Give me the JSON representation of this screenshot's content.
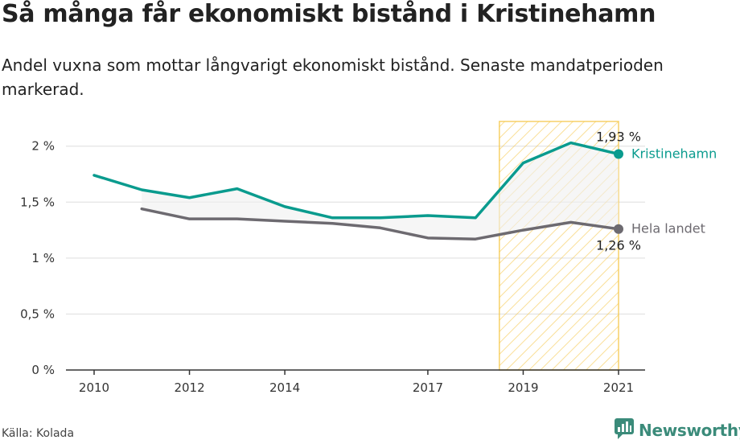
{
  "title": "Så många får ekonomiskt bistånd i Kristinehamn",
  "subtitle": "Andel vuxna som mottar långvarigt ekonomiskt bistånd. Senaste mandatperioden markerad.",
  "source": "Källa: Kolada",
  "brand": "Newsworthy",
  "colors": {
    "kristinehamn": "#0a9b8e",
    "national": "#6d6a70",
    "highlight": "#f5c542",
    "grid": "#dddddd"
  },
  "icons": {
    "brand_logo": "chart-bubble-icon"
  },
  "chart_data": {
    "type": "line",
    "ylim": [
      0,
      2.3
    ],
    "xlim": [
      2010,
      2021
    ],
    "yticks": [
      0,
      0.5,
      1,
      1.5,
      2
    ],
    "ytick_labels": [
      "0 %",
      "0,5 %",
      "1 %",
      "1,5 %",
      "2 %"
    ],
    "xticks": [
      2010,
      2012,
      2014,
      2017,
      2019,
      2021
    ],
    "xtick_labels": [
      "2010",
      "2012",
      "2014",
      "2017",
      "2019",
      "2021"
    ],
    "highlight_period": [
      2018.5,
      2021
    ],
    "grid": true,
    "series": [
      {
        "name": "Kristinehamn",
        "x": [
          2010,
          2011,
          2012,
          2013,
          2014,
          2015,
          2016,
          2017,
          2018,
          2019,
          2020,
          2021
        ],
        "values": [
          1.74,
          1.61,
          1.54,
          1.62,
          1.46,
          1.36,
          1.36,
          1.38,
          1.36,
          1.85,
          2.03,
          1.93
        ],
        "end_label": "1,93 %"
      },
      {
        "name": "Hela landet",
        "x": [
          2011,
          2012,
          2013,
          2014,
          2015,
          2016,
          2017,
          2018,
          2019,
          2020,
          2021
        ],
        "values": [
          1.44,
          1.35,
          1.35,
          1.33,
          1.31,
          1.27,
          1.18,
          1.17,
          1.25,
          1.32,
          1.26
        ],
        "end_label": "1,26 %"
      }
    ]
  }
}
